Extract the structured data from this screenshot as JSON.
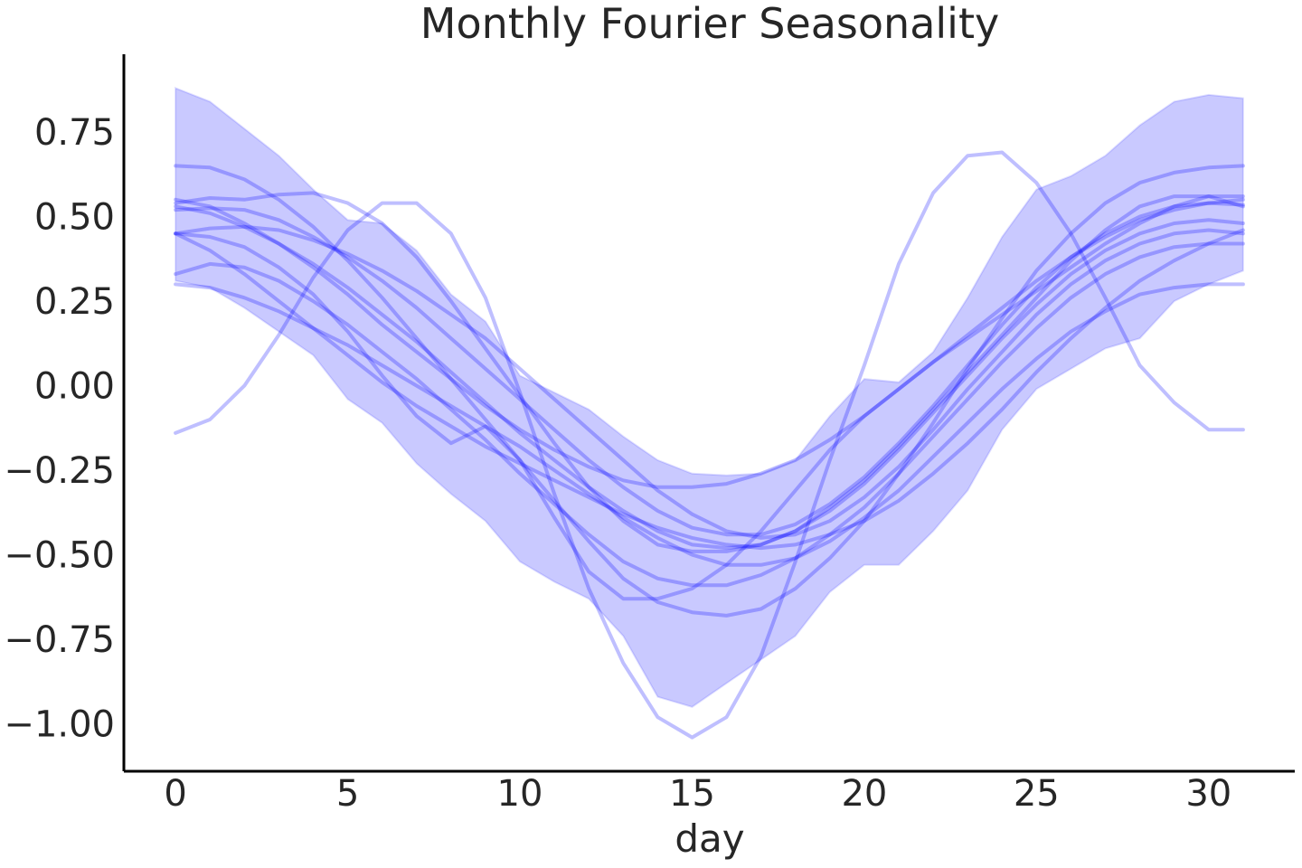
{
  "chart_data": {
    "type": "line",
    "title": "Monthly Fourier Seasonality",
    "xlabel": "day",
    "ylabel": "",
    "xlim": [
      -1.5,
      32.5
    ],
    "ylim": [
      -1.14,
      0.98
    ],
    "xticks": [
      0,
      5,
      10,
      15,
      20,
      25,
      30
    ],
    "xtick_labels": [
      "0",
      "5",
      "10",
      "15",
      "20",
      "25",
      "30"
    ],
    "yticks": [
      0.75,
      0.5,
      0.25,
      0.0,
      -0.25,
      -0.5,
      -0.75,
      -1.0
    ],
    "ytick_labels": [
      "0.75",
      "0.50",
      "0.25",
      "0.00",
      "−0.25",
      "−0.50",
      "−0.75",
      "−1.00"
    ],
    "grid": false,
    "line_color": "#0000ff",
    "line_alpha": 0.25,
    "band_color": "#0000ff",
    "band_alpha": 0.21,
    "x": [
      0,
      1,
      2,
      3,
      4,
      5,
      6,
      7,
      8,
      9,
      10,
      11,
      12,
      13,
      14,
      15,
      16,
      17,
      18,
      19,
      20,
      21,
      22,
      23,
      24,
      25,
      26,
      27,
      28,
      29,
      30,
      31
    ],
    "band_upper": [
      0.88,
      0.84,
      0.76,
      0.68,
      0.58,
      0.49,
      0.48,
      0.4,
      0.27,
      0.19,
      0.03,
      -0.02,
      -0.07,
      -0.15,
      -0.22,
      -0.26,
      -0.265,
      -0.26,
      -0.22,
      -0.09,
      0.02,
      0.01,
      0.1,
      0.26,
      0.44,
      0.58,
      0.62,
      0.68,
      0.77,
      0.84,
      0.86,
      0.85
    ],
    "band_lower": [
      0.31,
      0.29,
      0.23,
      0.16,
      0.09,
      -0.04,
      -0.11,
      -0.23,
      -0.32,
      -0.4,
      -0.52,
      -0.58,
      -0.63,
      -0.74,
      -0.92,
      -0.95,
      -0.88,
      -0.81,
      -0.74,
      -0.61,
      -0.53,
      -0.53,
      -0.43,
      -0.31,
      -0.13,
      -0.01,
      0.05,
      0.11,
      0.14,
      0.25,
      0.3,
      0.34
    ],
    "series": [
      {
        "values": [
          -0.14,
          -0.1,
          0.0,
          0.15,
          0.32,
          0.46,
          0.54,
          0.54,
          0.45,
          0.26,
          -0.02,
          -0.32,
          -0.6,
          -0.82,
          -0.98,
          -1.04,
          -0.98,
          -0.8,
          -0.52,
          -0.22,
          0.06,
          0.36,
          0.57,
          0.68,
          0.69,
          0.6,
          0.45,
          0.26,
          0.06,
          -0.05,
          -0.13,
          -0.13
        ]
      },
      {
        "values": [
          0.65,
          0.645,
          0.61,
          0.55,
          0.47,
          0.37,
          0.26,
          0.14,
          0.02,
          -0.1,
          -0.22,
          -0.34,
          -0.46,
          -0.57,
          -0.64,
          -0.67,
          -0.68,
          -0.66,
          -0.6,
          -0.51,
          -0.4,
          -0.26,
          -0.11,
          0.05,
          0.2,
          0.34,
          0.45,
          0.54,
          0.6,
          0.63,
          0.645,
          0.65
        ]
      },
      {
        "values": [
          0.52,
          0.525,
          0.52,
          0.49,
          0.44,
          0.38,
          0.31,
          0.23,
          0.14,
          0.05,
          -0.04,
          -0.13,
          -0.22,
          -0.3,
          -0.37,
          -0.42,
          -0.44,
          -0.44,
          -0.41,
          -0.35,
          -0.27,
          -0.17,
          -0.06,
          0.06,
          0.18,
          0.29,
          0.38,
          0.45,
          0.5,
          0.53,
          0.54,
          0.535
        ]
      },
      {
        "values": [
          0.55,
          0.53,
          0.48,
          0.42,
          0.35,
          0.27,
          0.18,
          0.1,
          0.02,
          -0.06,
          -0.13,
          -0.19,
          -0.24,
          -0.28,
          -0.3,
          -0.3,
          -0.29,
          -0.26,
          -0.22,
          -0.16,
          -0.09,
          -0.01,
          0.07,
          0.15,
          0.23,
          0.31,
          0.38,
          0.44,
          0.49,
          0.52,
          0.54,
          0.55
        ]
      },
      {
        "values": [
          0.45,
          0.465,
          0.47,
          0.46,
          0.43,
          0.39,
          0.34,
          0.28,
          0.21,
          0.14,
          0.05,
          -0.04,
          -0.13,
          -0.22,
          -0.31,
          -0.38,
          -0.43,
          -0.45,
          -0.44,
          -0.4,
          -0.33,
          -0.24,
          -0.13,
          -0.01,
          0.1,
          0.21,
          0.3,
          0.37,
          0.42,
          0.45,
          0.46,
          0.45
        ]
      },
      {
        "values": [
          0.33,
          0.36,
          0.35,
          0.31,
          0.25,
          0.18,
          0.1,
          0.02,
          -0.07,
          -0.16,
          -0.26,
          -0.35,
          -0.44,
          -0.52,
          -0.57,
          -0.59,
          -0.59,
          -0.56,
          -0.51,
          -0.44,
          -0.36,
          -0.26,
          -0.15,
          -0.04,
          0.07,
          0.17,
          0.26,
          0.33,
          0.38,
          0.41,
          0.42,
          0.42
        ]
      },
      {
        "values": [
          0.45,
          0.4,
          0.33,
          0.25,
          0.17,
          0.09,
          0.01,
          -0.06,
          -0.12,
          -0.18,
          -0.23,
          -0.28,
          -0.33,
          -0.38,
          -0.42,
          -0.45,
          -0.47,
          -0.48,
          -0.47,
          -0.44,
          -0.4,
          -0.34,
          -0.26,
          -0.17,
          -0.07,
          0.04,
          0.14,
          0.23,
          0.31,
          0.37,
          0.42,
          0.46
        ]
      },
      {
        "values": [
          0.3,
          0.29,
          0.26,
          0.22,
          0.17,
          0.12,
          0.06,
          0.0,
          -0.06,
          -0.12,
          -0.18,
          -0.25,
          -0.32,
          -0.39,
          -0.45,
          -0.5,
          -0.53,
          -0.53,
          -0.51,
          -0.46,
          -0.39,
          -0.31,
          -0.21,
          -0.11,
          -0.01,
          0.08,
          0.16,
          0.22,
          0.27,
          0.29,
          0.3,
          0.3
        ]
      },
      {
        "values": [
          0.53,
          0.51,
          0.47,
          0.42,
          0.36,
          0.29,
          0.21,
          0.13,
          0.04,
          -0.05,
          -0.14,
          -0.22,
          -0.3,
          -0.37,
          -0.43,
          -0.47,
          -0.48,
          -0.47,
          -0.43,
          -0.37,
          -0.29,
          -0.19,
          -0.08,
          0.03,
          0.14,
          0.24,
          0.33,
          0.4,
          0.45,
          0.48,
          0.49,
          0.48
        ]
      },
      {
        "values": [
          0.45,
          0.44,
          0.41,
          0.35,
          0.27,
          0.16,
          0.03,
          -0.09,
          -0.17,
          -0.12,
          -0.22,
          -0.39,
          -0.55,
          -0.63,
          -0.63,
          -0.6,
          -0.53,
          -0.43,
          -0.31,
          -0.19,
          -0.09,
          -0.01,
          0.07,
          0.14,
          0.21,
          0.28,
          0.35,
          0.42,
          0.48,
          0.53,
          0.56,
          0.56
        ]
      },
      {
        "values": [
          0.54,
          0.555,
          0.55,
          0.565,
          0.57,
          0.54,
          0.48,
          0.38,
          0.25,
          0.11,
          -0.03,
          -0.17,
          -0.3,
          -0.4,
          -0.47,
          -0.49,
          -0.49,
          -0.47,
          -0.43,
          -0.36,
          -0.28,
          -0.18,
          -0.07,
          0.04,
          0.15,
          0.26,
          0.37,
          0.46,
          0.53,
          0.56,
          0.56,
          0.53
        ]
      }
    ]
  }
}
